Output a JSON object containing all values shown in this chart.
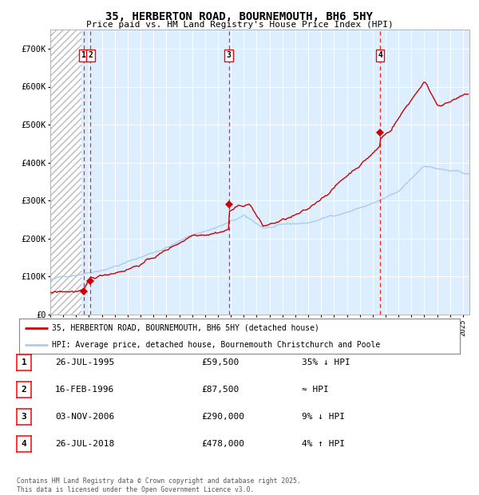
{
  "title": "35, HERBERTON ROAD, BOURNEMOUTH, BH6 5HY",
  "subtitle": "Price paid vs. HM Land Registry's House Price Index (HPI)",
  "ylim": [
    0,
    750000
  ],
  "yticks": [
    0,
    100000,
    200000,
    300000,
    400000,
    500000,
    600000,
    700000
  ],
  "ytick_labels": [
    "£0",
    "£100K",
    "£200K",
    "£300K",
    "£400K",
    "£500K",
    "£600K",
    "£700K"
  ],
  "xlim_start": 1993.0,
  "xlim_end": 2025.5,
  "background_color": "#ffffff",
  "plot_bg_color": "#ddeeff",
  "grid_color": "#ffffff",
  "transaction_color": "#cc0000",
  "hpi_color": "#aaccee",
  "legend_line1": "35, HERBERTON ROAD, BOURNEMOUTH, BH6 5HY (detached house)",
  "legend_line2": "HPI: Average price, detached house, Bournemouth Christchurch and Poole",
  "transactions": [
    {
      "date": 1995.57,
      "price": 59500,
      "label": "1"
    },
    {
      "date": 1996.12,
      "price": 87500,
      "label": "2"
    },
    {
      "date": 2006.84,
      "price": 290000,
      "label": "3"
    },
    {
      "date": 2018.57,
      "price": 478000,
      "label": "4"
    }
  ],
  "table_rows": [
    {
      "num": "1",
      "date": "26-JUL-1995",
      "price": "£59,500",
      "relation": "35% ↓ HPI"
    },
    {
      "num": "2",
      "date": "16-FEB-1996",
      "price": "£87,500",
      "relation": "≈ HPI"
    },
    {
      "num": "3",
      "date": "03-NOV-2006",
      "price": "£290,000",
      "relation": "9% ↓ HPI"
    },
    {
      "num": "4",
      "date": "26-JUL-2018",
      "price": "£478,000",
      "relation": "4% ↑ HPI"
    }
  ],
  "footnote": "Contains HM Land Registry data © Crown copyright and database right 2025.\nThis data is licensed under the Open Government Licence v3.0."
}
